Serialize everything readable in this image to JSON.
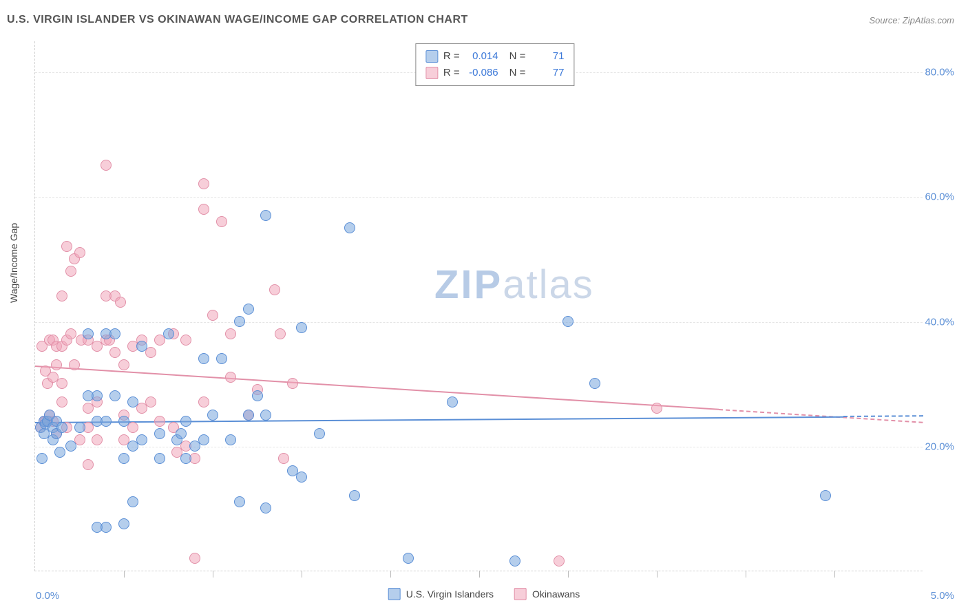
{
  "title": "U.S. VIRGIN ISLANDER VS OKINAWAN WAGE/INCOME GAP CORRELATION CHART",
  "source": "Source: ZipAtlas.com",
  "ylabel": "Wage/Income Gap",
  "watermark_zip": "ZIP",
  "watermark_rest": "atlas",
  "chart": {
    "type": "scatter",
    "xlim": [
      0,
      5
    ],
    "ylim": [
      0,
      85
    ],
    "x_tick_labels": {
      "min": "0.0%",
      "max": "5.0%"
    },
    "y_grid": [
      20,
      40,
      60,
      80
    ],
    "y_tick_labels": [
      "20.0%",
      "40.0%",
      "60.0%",
      "80.0%"
    ],
    "x_minor_ticks": [
      0.5,
      1.0,
      1.5,
      2.0,
      2.5,
      3.0,
      3.5,
      4.0,
      4.5
    ],
    "background_color": "#ffffff",
    "grid_color": "#e5e5e5",
    "axis_color": "#d0d0d0",
    "label_fontsize": 14,
    "tick_fontsize": 15,
    "tick_color": "#5b8fd6",
    "point_radius": 8,
    "series": {
      "blue": {
        "label": "U.S. Virgin Islanders",
        "fill": "rgba(120,165,220,0.55)",
        "stroke": "#5b8fd6",
        "R": "0.014",
        "N": "71",
        "trend": {
          "y_start": 24,
          "y_end": 25,
          "solid_x_end": 4.55,
          "x_end": 5.0
        },
        "points": [
          [
            0.03,
            23
          ],
          [
            0.05,
            24
          ],
          [
            0.05,
            22
          ],
          [
            0.06,
            23.5
          ],
          [
            0.07,
            24
          ],
          [
            0.08,
            25
          ],
          [
            0.1,
            21
          ],
          [
            0.1,
            23
          ],
          [
            0.12,
            22
          ],
          [
            0.12,
            24
          ],
          [
            0.15,
            23
          ],
          [
            0.14,
            19
          ],
          [
            0.04,
            18
          ],
          [
            0.35,
            24
          ],
          [
            0.3,
            38
          ],
          [
            0.3,
            28
          ],
          [
            0.2,
            20
          ],
          [
            0.35,
            7
          ],
          [
            0.35,
            28
          ],
          [
            0.25,
            23
          ],
          [
            0.4,
            38
          ],
          [
            0.45,
            38
          ],
          [
            0.4,
            24
          ],
          [
            0.45,
            28
          ],
          [
            0.5,
            24
          ],
          [
            0.4,
            7
          ],
          [
            0.5,
            7.5
          ],
          [
            0.55,
            20
          ],
          [
            0.55,
            27
          ],
          [
            0.5,
            18
          ],
          [
            0.55,
            11
          ],
          [
            0.6,
            21
          ],
          [
            0.6,
            36
          ],
          [
            0.7,
            18
          ],
          [
            0.7,
            22
          ],
          [
            0.75,
            38
          ],
          [
            0.8,
            21
          ],
          [
            0.82,
            22
          ],
          [
            0.85,
            18
          ],
          [
            0.85,
            24
          ],
          [
            0.9,
            20
          ],
          [
            0.95,
            21
          ],
          [
            0.95,
            34
          ],
          [
            1.0,
            25
          ],
          [
            1.05,
            34
          ],
          [
            1.15,
            11
          ],
          [
            1.1,
            21
          ],
          [
            1.2,
            42
          ],
          [
            1.15,
            40
          ],
          [
            1.2,
            25
          ],
          [
            1.25,
            28
          ],
          [
            1.3,
            10
          ],
          [
            1.3,
            25
          ],
          [
            1.3,
            57
          ],
          [
            1.45,
            16
          ],
          [
            1.5,
            15
          ],
          [
            1.5,
            39
          ],
          [
            1.6,
            22
          ],
          [
            1.77,
            55
          ],
          [
            1.8,
            12
          ],
          [
            2.1,
            2
          ],
          [
            2.35,
            27
          ],
          [
            2.7,
            1.5
          ],
          [
            3.0,
            40
          ],
          [
            3.15,
            30
          ],
          [
            4.45,
            12
          ]
        ]
      },
      "pink": {
        "label": "Okinawans",
        "fill": "rgba(240,165,185,0.55)",
        "stroke": "#e290a8",
        "R": "-0.086",
        "N": "77",
        "trend": {
          "y_start": 33,
          "y_end": 24,
          "solid_x_end": 3.85,
          "x_end": 5.0
        },
        "points": [
          [
            0.03,
            23
          ],
          [
            0.05,
            24
          ],
          [
            0.04,
            36
          ],
          [
            0.06,
            24
          ],
          [
            0.06,
            32
          ],
          [
            0.07,
            30
          ],
          [
            0.08,
            37
          ],
          [
            0.08,
            25
          ],
          [
            0.1,
            37
          ],
          [
            0.1,
            31
          ],
          [
            0.1,
            24
          ],
          [
            0.12,
            36
          ],
          [
            0.12,
            33
          ],
          [
            0.12,
            22
          ],
          [
            0.15,
            44
          ],
          [
            0.15,
            36
          ],
          [
            0.15,
            30
          ],
          [
            0.15,
            27
          ],
          [
            0.18,
            37
          ],
          [
            0.18,
            52
          ],
          [
            0.18,
            23
          ],
          [
            0.2,
            38
          ],
          [
            0.2,
            48
          ],
          [
            0.22,
            50
          ],
          [
            0.22,
            33
          ],
          [
            0.25,
            51
          ],
          [
            0.25,
            21
          ],
          [
            0.26,
            37
          ],
          [
            0.3,
            26
          ],
          [
            0.3,
            37
          ],
          [
            0.3,
            23
          ],
          [
            0.3,
            17
          ],
          [
            0.35,
            36
          ],
          [
            0.35,
            27
          ],
          [
            0.35,
            21
          ],
          [
            0.4,
            44
          ],
          [
            0.4,
            37
          ],
          [
            0.4,
            65
          ],
          [
            0.42,
            37
          ],
          [
            0.45,
            44
          ],
          [
            0.45,
            35
          ],
          [
            0.48,
            43
          ],
          [
            0.5,
            25
          ],
          [
            0.5,
            21
          ],
          [
            0.5,
            33
          ],
          [
            0.55,
            23
          ],
          [
            0.55,
            36
          ],
          [
            0.6,
            37
          ],
          [
            0.6,
            26
          ],
          [
            0.65,
            27
          ],
          [
            0.65,
            35
          ],
          [
            0.7,
            24
          ],
          [
            0.7,
            37
          ],
          [
            0.78,
            38
          ],
          [
            0.78,
            23
          ],
          [
            0.8,
            19
          ],
          [
            0.85,
            20
          ],
          [
            0.85,
            37
          ],
          [
            0.9,
            2
          ],
          [
            0.9,
            18
          ],
          [
            0.95,
            27
          ],
          [
            0.95,
            58
          ],
          [
            0.95,
            62
          ],
          [
            1.0,
            41
          ],
          [
            1.05,
            56
          ],
          [
            1.1,
            31
          ],
          [
            1.1,
            38
          ],
          [
            1.2,
            25
          ],
          [
            1.25,
            29
          ],
          [
            1.35,
            45
          ],
          [
            1.38,
            38
          ],
          [
            1.4,
            18
          ],
          [
            1.45,
            30
          ],
          [
            2.95,
            1.5
          ],
          [
            3.5,
            26
          ]
        ]
      }
    }
  },
  "legend_top_labels": {
    "R": "R =",
    "N": "N ="
  }
}
